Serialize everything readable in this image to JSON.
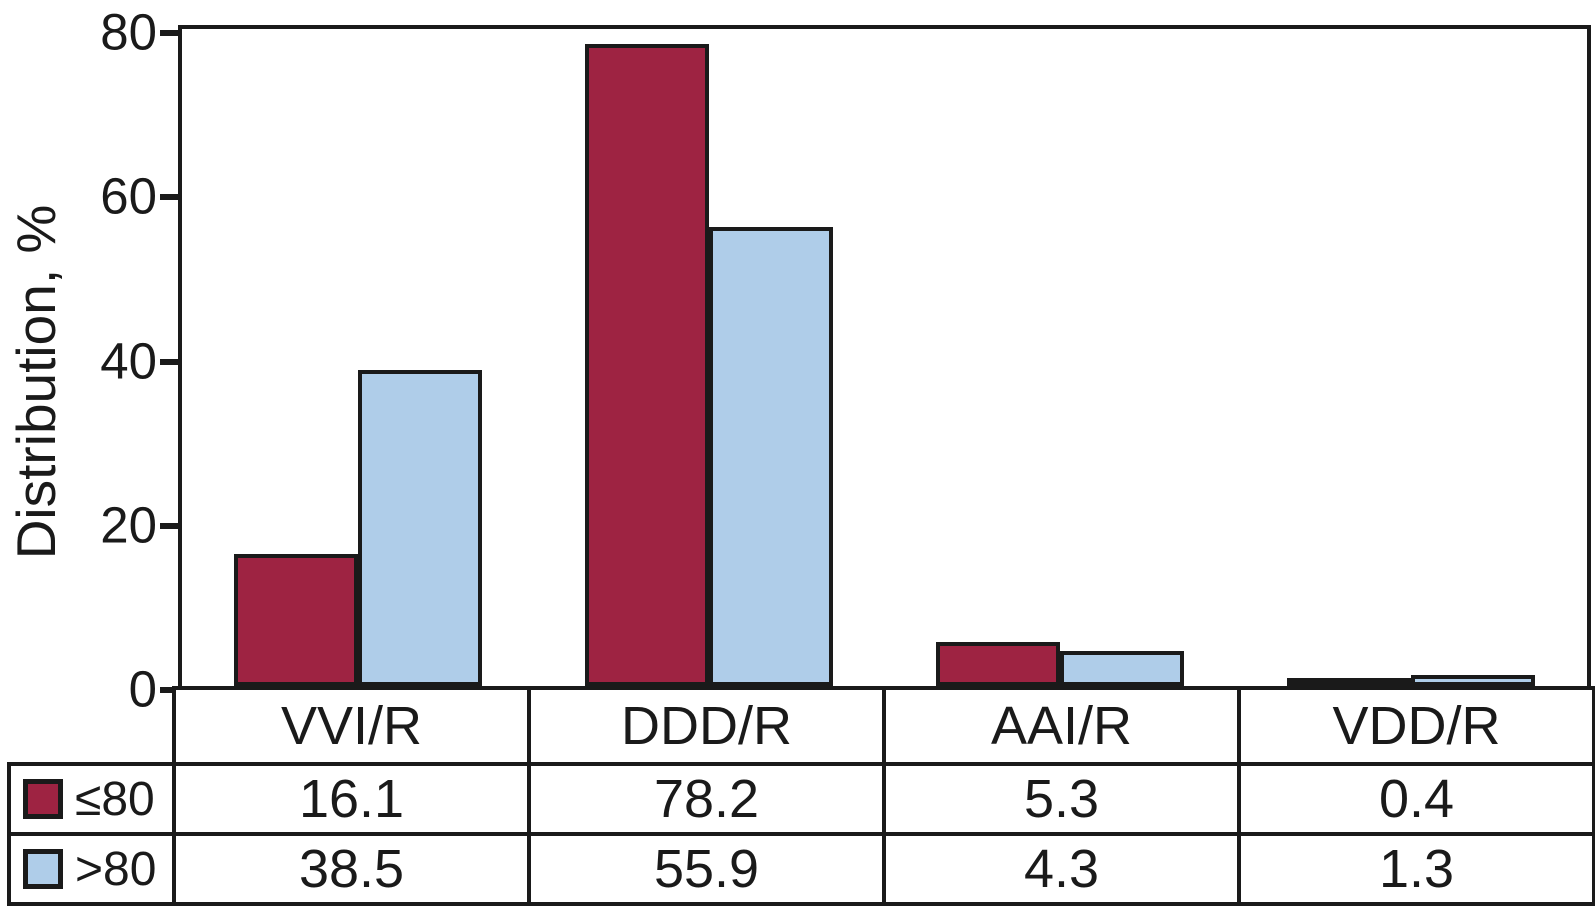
{
  "chart_data": {
    "type": "bar",
    "title": "",
    "ylabel": "Distribution, %",
    "xlabel": "",
    "categories": [
      "VVI/R",
      "DDD/R",
      "AAI/R",
      "VDD/R"
    ],
    "series": [
      {
        "name": "≤80",
        "color": "#9e2342",
        "values": [
          16.1,
          78.2,
          5.3,
          0.4
        ]
      },
      {
        "name": ">80",
        "color": "#afcde9",
        "values": [
          38.5,
          55.9,
          4.3,
          1.3
        ]
      }
    ],
    "ylim": [
      0,
      80
    ],
    "yticks": [
      0,
      20,
      40,
      60,
      80
    ],
    "grid": false,
    "legend_position": "table-left",
    "data_table_shown": true
  },
  "colors": {
    "bar_border": "#1a1a1a",
    "axis": "#1a1a1a",
    "background": "#ffffff",
    "series_le80": "#9e2342",
    "series_gt80": "#afcde9"
  }
}
